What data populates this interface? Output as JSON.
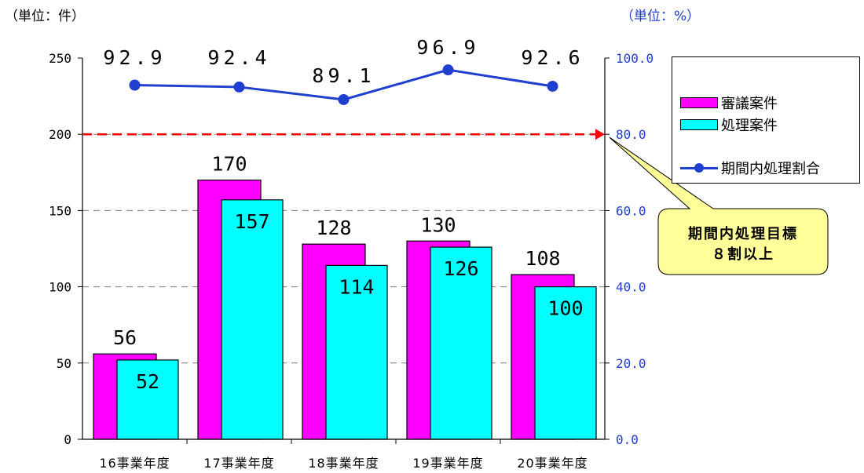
{
  "unit_left": "（単位：件）",
  "unit_right": "（単位：%）",
  "chart_data": {
    "type": "bar",
    "categories": [
      "16事業年度",
      "17事業年度",
      "18事業年度",
      "19事業年度",
      "20事業年度"
    ],
    "series": [
      {
        "name": "審議案件",
        "values": [
          56,
          170,
          128,
          130,
          108
        ],
        "color": "#ff00ff",
        "axis": "left"
      },
      {
        "name": "処理案件",
        "values": [
          52,
          157,
          114,
          126,
          100
        ],
        "color": "#00ffff",
        "axis": "left"
      },
      {
        "name": "期間内処理割合",
        "type": "line",
        "values": [
          92.9,
          92.4,
          89.1,
          96.9,
          92.6
        ],
        "color": "#1f3fd0",
        "axis": "right"
      }
    ],
    "value_labels": {
      "審議案件": [
        "56",
        "170",
        "128",
        "130",
        "108"
      ],
      "処理案件": [
        "52",
        "157",
        "114",
        "126",
        "100"
      ],
      "期間内処理割合": [
        "92.9",
        "92.4",
        "89.1",
        "96.9",
        "92.6"
      ]
    },
    "ylim_left": [
      0,
      250
    ],
    "ylim_right": [
      0,
      100
    ],
    "yticks_left": [
      "0",
      "50",
      "100",
      "150",
      "200",
      "250"
    ],
    "yticks_right": [
      "0.0",
      "20.0",
      "40.0",
      "60.0",
      "80.0",
      "100.0"
    ],
    "target_line": {
      "value": 80,
      "axis": "right",
      "color": "#ff0000"
    },
    "grid": "dashed-horizontal",
    "legend": "right"
  },
  "callout": {
    "line1": "期間内処理目標",
    "line2": "８割以上",
    "color": "#ffff99"
  }
}
